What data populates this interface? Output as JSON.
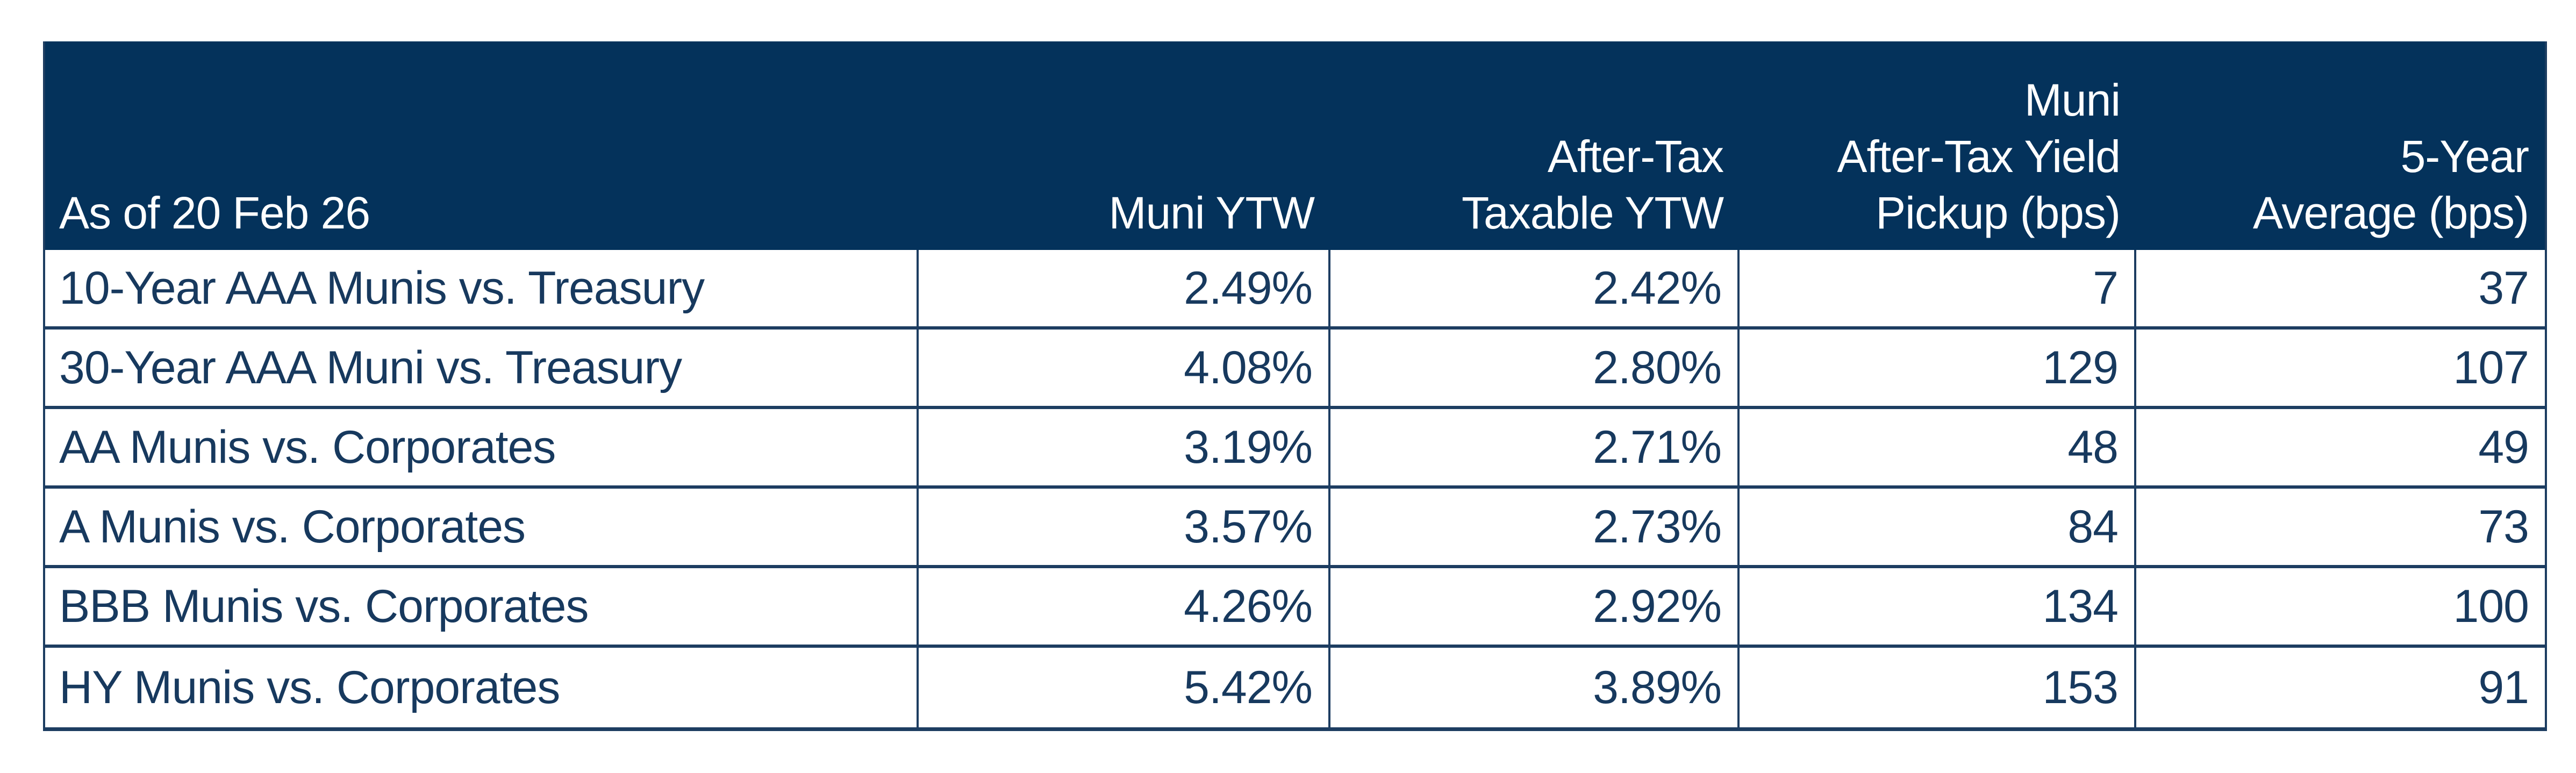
{
  "chart_data": {
    "type": "table",
    "as_of_label": "As of 20 Feb 26",
    "columns": [
      "As of 20 Feb 26",
      "Muni YTW",
      "After-Tax Taxable YTW",
      "Muni After-Tax Yield Pickup (bps)",
      "5-Year Average (bps)"
    ],
    "rows": [
      {
        "label": "10-Year AAA Munis vs. Treasury",
        "muni_ytw_pct": 2.49,
        "after_tax_taxable_ytw_pct": 2.42,
        "muni_after_tax_yield_pickup_bps": 7,
        "five_year_average_bps": 37
      },
      {
        "label": "30-Year AAA Muni vs. Treasury",
        "muni_ytw_pct": 4.08,
        "after_tax_taxable_ytw_pct": 2.8,
        "muni_after_tax_yield_pickup_bps": 129,
        "five_year_average_bps": 107
      },
      {
        "label": "AA Munis vs. Corporates",
        "muni_ytw_pct": 3.19,
        "after_tax_taxable_ytw_pct": 2.71,
        "muni_after_tax_yield_pickup_bps": 48,
        "five_year_average_bps": 49
      },
      {
        "label": "A Munis vs. Corporates",
        "muni_ytw_pct": 3.57,
        "after_tax_taxable_ytw_pct": 2.73,
        "muni_after_tax_yield_pickup_bps": 84,
        "five_year_average_bps": 73
      },
      {
        "label": "BBB Munis vs. Corporates",
        "muni_ytw_pct": 4.26,
        "after_tax_taxable_ytw_pct": 2.92,
        "muni_after_tax_yield_pickup_bps": 134,
        "five_year_average_bps": 100
      },
      {
        "label": "HY Munis vs. Corporates",
        "muni_ytw_pct": 5.42,
        "after_tax_taxable_ytw_pct": 3.89,
        "muni_after_tax_yield_pickup_bps": 153,
        "five_year_average_bps": 91
      }
    ]
  },
  "table": {
    "header": [
      {
        "lines": [
          "As of 20 Feb 26"
        ]
      },
      {
        "lines": [
          "Muni YTW"
        ]
      },
      {
        "lines": [
          "After-Tax",
          "Taxable YTW"
        ]
      },
      {
        "lines": [
          "Muni",
          "After-Tax Yield",
          "Pickup (bps)"
        ]
      },
      {
        "lines": [
          "5-Year",
          "Average (bps)"
        ]
      }
    ],
    "rows": [
      {
        "cells": [
          "10-Year AAA Munis vs. Treasury",
          "2.49%",
          "2.42%",
          "7",
          "37"
        ]
      },
      {
        "cells": [
          "30-Year AAA Muni vs. Treasury",
          "4.08%",
          "2.80%",
          "129",
          "107"
        ]
      },
      {
        "cells": [
          "AA Munis vs. Corporates",
          "3.19%",
          "2.71%",
          "48",
          "49"
        ]
      },
      {
        "cells": [
          "A Munis vs. Corporates",
          "3.57%",
          "2.73%",
          "84",
          "73"
        ]
      },
      {
        "cells": [
          "BBB Munis vs. Corporates",
          "4.26%",
          "2.92%",
          "134",
          "100"
        ]
      },
      {
        "cells": [
          "HY Munis vs. Corporates",
          "5.42%",
          "3.89%",
          "153",
          "91"
        ]
      }
    ]
  },
  "colors": {
    "header_bg": "#04325B",
    "text_navy": "#17395E",
    "border": "#1D3D61",
    "page_bg": "#FFFFFF"
  }
}
